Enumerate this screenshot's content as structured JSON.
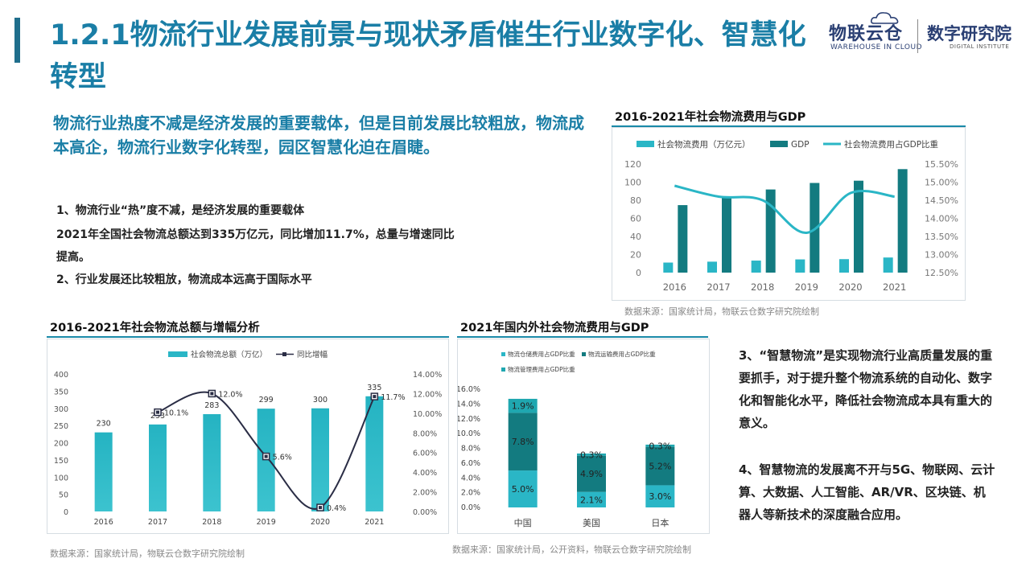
{
  "page": {
    "title": "1.2.1物流行业发展前景与现状矛盾催生行业数字化、智慧化转型",
    "headline": "物流行业热度不减是经济发展的重要载体，但是目前发展比较粗放，物流成本高企，物流行业数字化转型，园区智慧化迫在眉睫。"
  },
  "logo": {
    "brand": "物联云仓",
    "brand_en": "WAREHOUSE IN CLOUD",
    "institute": "数字研究院",
    "institute_en": "DIGITAL INSTITUTE"
  },
  "points": [
    "1、物流行业“热”度不减，是经济发展的重要载体",
    "2021年全国社会物流总额达到335万亿元，同比增加11.7%，总量与增速同比",
    "提高。",
    "2、行业发展还比较粗放，物流成本远高于国际水平"
  ],
  "notes": {
    "p3": "3、“智慧物流”是实现物流行业高质量发展的重要抓手，对于提升整个物流系统的自动化、数字化和智能化水平，降低社会物流成本具有重大的意义。",
    "p4": "4、智慧物流的发展离不开与5G、物联网、云计算、大数据、人工智能、AR/VR、区块链、机器人等新技术的深度融合应用。"
  },
  "colors": {
    "accent": "#1a7ea6",
    "light_teal": "#2ab6c6",
    "dark_teal": "#137b80",
    "mid_teal": "#1fa7b0"
  },
  "chart_data": [
    {
      "type": "bar",
      "title": "2016-2021年社会物流费用与GDP",
      "categories": [
        "2016",
        "2017",
        "2018",
        "2019",
        "2020",
        "2021"
      ],
      "series": [
        {
          "name": "社会物流费用（万亿元）",
          "values": [
            11.1,
            12.1,
            13.3,
            14.6,
            14.9,
            16.7
          ],
          "axis": "left",
          "kind": "bar"
        },
        {
          "name": "GDP",
          "values": [
            74.6,
            83.2,
            91.9,
            99.1,
            101.6,
            114.4
          ],
          "axis": "left",
          "kind": "bar"
        },
        {
          "name": "社会物流费用占GDP比重",
          "values": [
            14.9,
            14.6,
            14.5,
            13.6,
            14.7,
            14.6
          ],
          "axis": "right",
          "kind": "line"
        }
      ],
      "ylim": [
        0,
        120
      ],
      "yticks": [
        "120",
        "100",
        "80",
        "60",
        "40",
        "20",
        "0"
      ],
      "y2lim": [
        12.5,
        15.5
      ],
      "y2ticks": [
        "15.50%",
        "15.00%",
        "14.50%",
        "14.00%",
        "13.50%",
        "13.00%",
        "12.50%"
      ],
      "legend": "top",
      "source": "数据来源：国家统计局，物联云仓数字研究院绘制"
    },
    {
      "type": "bar",
      "title": "2016-2021年社会物流总额与增幅分析",
      "categories": [
        "2016",
        "2017",
        "2018",
        "2019",
        "2020",
        "2021"
      ],
      "series": [
        {
          "name": "社会物流总额（万亿）",
          "values": [
            230,
            253,
            283,
            299,
            300,
            335
          ],
          "labels": [
            "230",
            "253",
            "283",
            "299",
            "300",
            "335"
          ],
          "axis": "left",
          "kind": "bar"
        },
        {
          "name": "同比增幅",
          "values": [
            null,
            10.1,
            12.0,
            5.6,
            0.4,
            11.7
          ],
          "labels": [
            "",
            "10.1%",
            "12.0%",
            "5.6%",
            "0.4%",
            "11.7%"
          ],
          "axis": "right",
          "kind": "line"
        }
      ],
      "ylim": [
        0,
        400
      ],
      "yticks": [
        "400",
        "350",
        "300",
        "250",
        "200",
        "150",
        "100",
        "50",
        "0"
      ],
      "y2lim": [
        0,
        14
      ],
      "y2ticks": [
        "14.00%",
        "12.00%",
        "10.00%",
        "8.00%",
        "6.00%",
        "4.00%",
        "2.00%",
        "0.00%"
      ],
      "legend": "top",
      "source": "数据来源：国家统计局，物联云仓数字研究院绘制"
    },
    {
      "type": "bar",
      "title": "2021年国内外社会物流费用与GDP",
      "categories": [
        "中国",
        "美国",
        "日本"
      ],
      "series": [
        {
          "name": "物流仓储费用占GDP比重",
          "values": [
            5.0,
            2.1,
            3.0
          ],
          "labels": [
            "5.0%",
            "2.1%",
            "3.0%"
          ]
        },
        {
          "name": "物流运输费用占GDP比重",
          "values": [
            7.8,
            4.9,
            5.2
          ],
          "labels": [
            "7.8%",
            "4.9%",
            "5.2%"
          ]
        },
        {
          "name": "物流管理费用占GDP比重",
          "values": [
            1.9,
            0.3,
            0.3
          ],
          "labels": [
            "1.9%",
            "0.3%",
            "0.3%"
          ]
        }
      ],
      "stacked": true,
      "ylim": [
        0,
        16
      ],
      "yticks": [
        "16.0%",
        "14.0%",
        "12.0%",
        "10.0%",
        "8.0%",
        "6.0%",
        "4.0%",
        "2.0%",
        "0.0%"
      ],
      "legend": "top",
      "source": "数据来源：国家统计局，公开资料，物联云仓数字研究院绘制"
    }
  ]
}
